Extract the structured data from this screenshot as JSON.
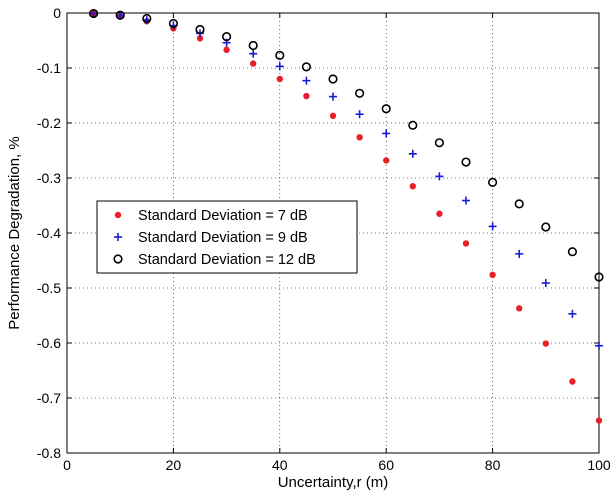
{
  "chart_data": {
    "type": "scatter",
    "xlabel": "Uncertainty,r (m)",
    "ylabel": "Performance Degradation, %",
    "xlim": [
      0,
      100
    ],
    "ylim": [
      -0.8,
      0
    ],
    "x_ticks": [
      0,
      20,
      40,
      60,
      80,
      100
    ],
    "y_ticks": [
      0,
      -0.1,
      -0.2,
      -0.3,
      -0.4,
      -0.5,
      -0.6,
      -0.7,
      -0.8
    ],
    "x_tick_labels": [
      "0",
      "20",
      "40",
      "60",
      "80",
      "100"
    ],
    "y_tick_labels": [
      "0",
      "-0.1",
      "-0.2",
      "-0.3",
      "-0.4",
      "-0.5",
      "-0.6",
      "-0.7",
      "-0.8"
    ],
    "grid": true,
    "legend_position": "center-left",
    "x": [
      5,
      10,
      15,
      20,
      25,
      30,
      35,
      40,
      45,
      50,
      55,
      60,
      65,
      70,
      75,
      80,
      85,
      90,
      95,
      100
    ],
    "series": [
      {
        "name": "Standard Deviation = 7 dB",
        "marker": "dot",
        "color": "#e8202a",
        "values": [
          -0.001,
          -0.006,
          -0.015,
          -0.028,
          -0.046,
          -0.067,
          -0.092,
          -0.12,
          -0.151,
          -0.187,
          -0.226,
          -0.268,
          -0.315,
          -0.365,
          -0.419,
          -0.476,
          -0.537,
          -0.601,
          -0.67,
          -0.741
        ]
      },
      {
        "name": "Standard Deviation = 9 dB",
        "marker": "plus",
        "color": "#1a1ad6",
        "values": [
          -0.001,
          -0.005,
          -0.013,
          -0.023,
          -0.037,
          -0.054,
          -0.074,
          -0.097,
          -0.123,
          -0.152,
          -0.184,
          -0.219,
          -0.256,
          -0.297,
          -0.341,
          -0.388,
          -0.438,
          -0.491,
          -0.547,
          -0.605
        ]
      },
      {
        "name": "Standard Deviation = 12 dB",
        "marker": "circle",
        "color": "#000000",
        "values": [
          -0.001,
          -0.004,
          -0.01,
          -0.019,
          -0.03,
          -0.043,
          -0.059,
          -0.077,
          -0.098,
          -0.12,
          -0.146,
          -0.174,
          -0.204,
          -0.236,
          -0.271,
          -0.308,
          -0.347,
          -0.389,
          -0.434,
          -0.48
        ]
      }
    ]
  }
}
